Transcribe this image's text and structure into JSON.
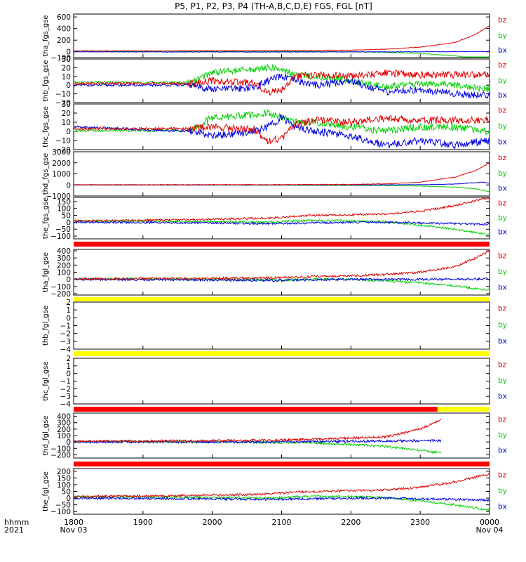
{
  "chart_data": {
    "type": "line",
    "title": "P5, P1, P2, P3, P4 (TH-A,B,C,D,E) FGS, FGL [nT]",
    "x_time_label": "hhmm",
    "x_year_label": "2021",
    "x_ticks": [
      "1800",
      "1900",
      "2000",
      "2100",
      "2200",
      "2300",
      "0000"
    ],
    "x_date_labels": [
      "Nov 03",
      "Nov 04"
    ],
    "xlim": [
      "2021-11-03 18:00",
      "2021-11-04 00:00"
    ],
    "legend": [
      "bz",
      "by",
      "bx"
    ],
    "colors": {
      "bz": "#e00000",
      "by": "#00d000",
      "bx": "#0000e0",
      "bar_red": "#ff0000",
      "bar_yellow": "#ffff00"
    },
    "panels": [
      {
        "ylabel": "tha_fgs_gse",
        "ylim": [
          -100,
          650
        ],
        "yticks": [
          "600",
          "400",
          "200",
          "0",
          "−100"
        ],
        "mode": "smooth",
        "series": [
          {
            "name": "bz",
            "x": [
              0,
              1,
              2,
              3,
              4,
              4.5,
              5,
              5.5,
              5.8,
              6
            ],
            "y": [
              15,
              15,
              18,
              20,
              28,
              45,
              80,
              160,
              300,
              450
            ]
          },
          {
            "name": "by",
            "x": [
              0,
              1,
              2,
              3,
              4,
              4.5,
              5,
              5.5,
              5.8,
              6
            ],
            "y": [
              12,
              10,
              8,
              5,
              0,
              -10,
              -30,
              -70,
              -110,
              -140
            ]
          },
          {
            "name": "bx",
            "x": [
              0,
              1,
              2,
              3,
              4,
              5,
              6
            ],
            "y": [
              0,
              -2,
              -2,
              -3,
              -2,
              0,
              5
            ]
          }
        ]
      },
      {
        "ylabel": "thb_fgs_gse",
        "ylim": [
          -20,
          30
        ],
        "yticks": [
          "30",
          "20",
          "10",
          "0",
          "−10",
          "−20"
        ],
        "mode": "noisy",
        "series": [
          {
            "name": "bz",
            "x": [
              0,
              1,
              1.7,
              2,
              2.6,
              2.8,
              3,
              3.2,
              3.5,
              4,
              4.5,
              5,
              5.5,
              6
            ],
            "y": [
              2,
              2,
              2,
              5,
              2,
              -8,
              -5,
              10,
              12,
              10,
              14,
              12,
              12,
              12
            ]
          },
          {
            "name": "by",
            "x": [
              0,
              1,
              1.7,
              2,
              2.6,
              2.8,
              3,
              3.2,
              3.5,
              4,
              4.5,
              5,
              5.5,
              6
            ],
            "y": [
              3,
              3,
              3,
              15,
              18,
              20,
              18,
              12,
              10,
              5,
              -2,
              2,
              0,
              -5
            ]
          },
          {
            "name": "bx",
            "x": [
              0,
              1,
              1.7,
              2,
              2.6,
              2.8,
              3,
              3.2,
              3.5,
              4,
              4.5,
              5,
              5.5,
              6
            ],
            "y": [
              0,
              0,
              0,
              -5,
              -3,
              5,
              10,
              5,
              0,
              5,
              -8,
              -5,
              -10,
              -12
            ]
          }
        ]
      },
      {
        "ylabel": "thc_fgs_gse",
        "ylim": [
          -20,
          30
        ],
        "yticks": [
          "30",
          "20",
          "10",
          "0",
          "−10",
          "−20"
        ],
        "mode": "noisy",
        "series": [
          {
            "name": "bz",
            "x": [
              0,
              1,
              1.7,
              2,
              2.6,
              2.8,
              3,
              3.2,
              3.5,
              4,
              4.5,
              5,
              5.5,
              6
            ],
            "y": [
              3,
              3,
              3,
              5,
              2,
              -10,
              -8,
              8,
              12,
              10,
              15,
              12,
              12,
              12
            ]
          },
          {
            "name": "by",
            "x": [
              0,
              1,
              1.7,
              2,
              2.6,
              2.8,
              3,
              3.2,
              3.5,
              4,
              4.5,
              5,
              5.5,
              6
            ],
            "y": [
              1,
              1,
              1,
              15,
              18,
              20,
              15,
              10,
              10,
              5,
              0,
              5,
              5,
              0
            ]
          },
          {
            "name": "bx",
            "x": [
              0,
              1,
              1.7,
              2,
              2.6,
              2.8,
              3,
              3.2,
              3.5,
              4,
              4.5,
              5,
              5.5,
              6
            ],
            "y": [
              5,
              2,
              0,
              -5,
              0,
              5,
              15,
              5,
              0,
              -5,
              -15,
              -10,
              -15,
              -10
            ]
          }
        ]
      },
      {
        "ylabel": "thd_fgs_gse",
        "ylim": [
          -1000,
          3000
        ],
        "yticks": [
          "3000",
          "2000",
          "1000",
          "0",
          "−1000"
        ],
        "mode": "smooth",
        "series": [
          {
            "name": "bz",
            "x": [
              0,
              1,
              2,
              3,
              4,
              4.5,
              5,
              5.5,
              5.8,
              6
            ],
            "y": [
              20,
              22,
              25,
              30,
              50,
              100,
              250,
              700,
              1300,
              2000
            ]
          },
          {
            "name": "by",
            "x": [
              0,
              1,
              2,
              3,
              4,
              4.5,
              5,
              5.5,
              5.8,
              6
            ],
            "y": [
              0,
              -5,
              -10,
              -20,
              -40,
              -60,
              -100,
              -200,
              -350,
              -600
            ]
          },
          {
            "name": "bx",
            "x": [
              0,
              1,
              2,
              3,
              4,
              5,
              5.5,
              5.9,
              6
            ],
            "y": [
              0,
              0,
              0,
              0,
              0,
              20,
              80,
              250,
              150
            ]
          }
        ]
      },
      {
        "ylabel": "the_fgs_gse",
        "ylim": [
          -120,
          180
        ],
        "yticks": [
          "150",
          "100",
          "50",
          "0",
          "−50",
          "−100"
        ],
        "mode": "medium",
        "series": [
          {
            "name": "bz",
            "x": [
              0,
              1,
              2,
              2.8,
              3.4,
              4,
              4.5,
              5,
              5.5,
              6
            ],
            "y": [
              10,
              15,
              22,
              30,
              50,
              55,
              60,
              80,
              120,
              180
            ]
          },
          {
            "name": "by",
            "x": [
              0,
              1,
              2,
              2.8,
              3.4,
              4,
              4.5,
              5,
              5.5,
              6
            ],
            "y": [
              10,
              8,
              5,
              0,
              15,
              10,
              5,
              -20,
              -50,
              -90
            ]
          },
          {
            "name": "bx",
            "x": [
              0,
              1,
              2,
              2.8,
              3.4,
              4,
              4.5,
              5,
              5.5,
              6
            ],
            "y": [
              0,
              -2,
              -5,
              -10,
              -5,
              0,
              0,
              -5,
              -10,
              -15
            ]
          }
        ]
      },
      {
        "ylabel": "tha_fgl_gse",
        "ylim": [
          -220,
          420
        ],
        "yticks": [
          "400",
          "300",
          "200",
          "100",
          "0",
          "−100",
          "−200"
        ],
        "mode": "medium",
        "series": [
          {
            "name": "bz",
            "x": [
              0,
              1,
              2,
              3,
              3.5,
              4,
              4.5,
              5,
              5.5,
              5.8,
              6
            ],
            "y": [
              5,
              10,
              15,
              25,
              40,
              50,
              70,
              100,
              180,
              300,
              400
            ]
          },
          {
            "name": "by",
            "x": [
              0,
              1,
              2,
              3,
              3.5,
              4,
              4.5,
              5,
              5.5,
              5.8,
              6
            ],
            "y": [
              5,
              5,
              0,
              -10,
              5,
              0,
              -20,
              -50,
              -90,
              -130,
              -150
            ]
          },
          {
            "name": "bx",
            "x": [
              0,
              1,
              2,
              3,
              3.5,
              4,
              5,
              6
            ],
            "y": [
              0,
              -5,
              -10,
              -15,
              -5,
              0,
              0,
              5
            ]
          }
        ]
      },
      {
        "ylabel": "thb_fgl_gse",
        "ylim": [
          -4,
          2
        ],
        "yticks": [
          "2",
          "1",
          "0",
          "−1",
          "−2",
          "−3",
          "−4"
        ],
        "mode": "none",
        "series": []
      },
      {
        "ylabel": "thc_fgl_gse",
        "ylim": [
          -4,
          2
        ],
        "yticks": [
          "2",
          "1",
          "0",
          "−1",
          "−2",
          "−3",
          "−4"
        ],
        "mode": "none",
        "series": []
      },
      {
        "ylabel": "thd_fgl_gse",
        "ylim": [
          -250,
          450
        ],
        "yticks": [
          "400",
          "300",
          "200",
          "100",
          "0",
          "−100",
          "−200"
        ],
        "mode": "medium",
        "series": [
          {
            "name": "bz",
            "x": [
              0,
              1,
              2,
              3,
              3.4,
              4,
              4.5,
              5,
              5.3
            ],
            "y": [
              10,
              15,
              20,
              30,
              40,
              60,
              80,
              200,
              350
            ]
          },
          {
            "name": "by",
            "x": [
              0,
              1,
              2,
              3,
              3.4,
              4,
              4.5,
              5,
              5.3
            ],
            "y": [
              5,
              5,
              0,
              -10,
              -10,
              -40,
              -70,
              -130,
              -170
            ]
          },
          {
            "name": "bx",
            "x": [
              0,
              1,
              2,
              3,
              4,
              5,
              5.3
            ],
            "y": [
              0,
              0,
              0,
              0,
              10,
              20,
              20
            ]
          }
        ]
      },
      {
        "ylabel": "the_fgl_gse",
        "ylim": [
          -120,
          220
        ],
        "yticks": [
          "200",
          "150",
          "100",
          "50",
          "0",
          "−50",
          "−100"
        ],
        "mode": "medium",
        "series": [
          {
            "name": "bz",
            "x": [
              0,
              1,
              2,
              2.8,
              3.4,
              4,
              4.5,
              5,
              5.5,
              6
            ],
            "y": [
              10,
              15,
              22,
              30,
              50,
              55,
              60,
              80,
              120,
              180
            ]
          },
          {
            "name": "by",
            "x": [
              0,
              1,
              2,
              2.8,
              3.4,
              4,
              4.5,
              5,
              5.5,
              6
            ],
            "y": [
              10,
              8,
              5,
              0,
              15,
              10,
              5,
              -20,
              -50,
              -90
            ]
          },
          {
            "name": "bx",
            "x": [
              0,
              1,
              2,
              2.8,
              3.4,
              4,
              4.5,
              5,
              5.5,
              6
            ],
            "y": [
              0,
              -2,
              -5,
              -10,
              -5,
              0,
              0,
              -5,
              -10,
              -15
            ]
          }
        ]
      }
    ],
    "mode_bars": [
      {
        "segments": [
          {
            "from": 0,
            "to": 6,
            "color": "red"
          }
        ]
      },
      {
        "segments": [
          {
            "from": 0,
            "to": 6,
            "color": "yellow"
          }
        ]
      },
      {
        "segments": [
          {
            "from": 0,
            "to": 6,
            "color": "yellow"
          }
        ]
      },
      {
        "segments": [
          {
            "from": 0,
            "to": 5.25,
            "color": "red"
          },
          {
            "from": 5.25,
            "to": 6,
            "color": "yellow"
          }
        ]
      },
      {
        "segments": [
          {
            "from": 0,
            "to": 6,
            "color": "red"
          }
        ]
      }
    ]
  }
}
